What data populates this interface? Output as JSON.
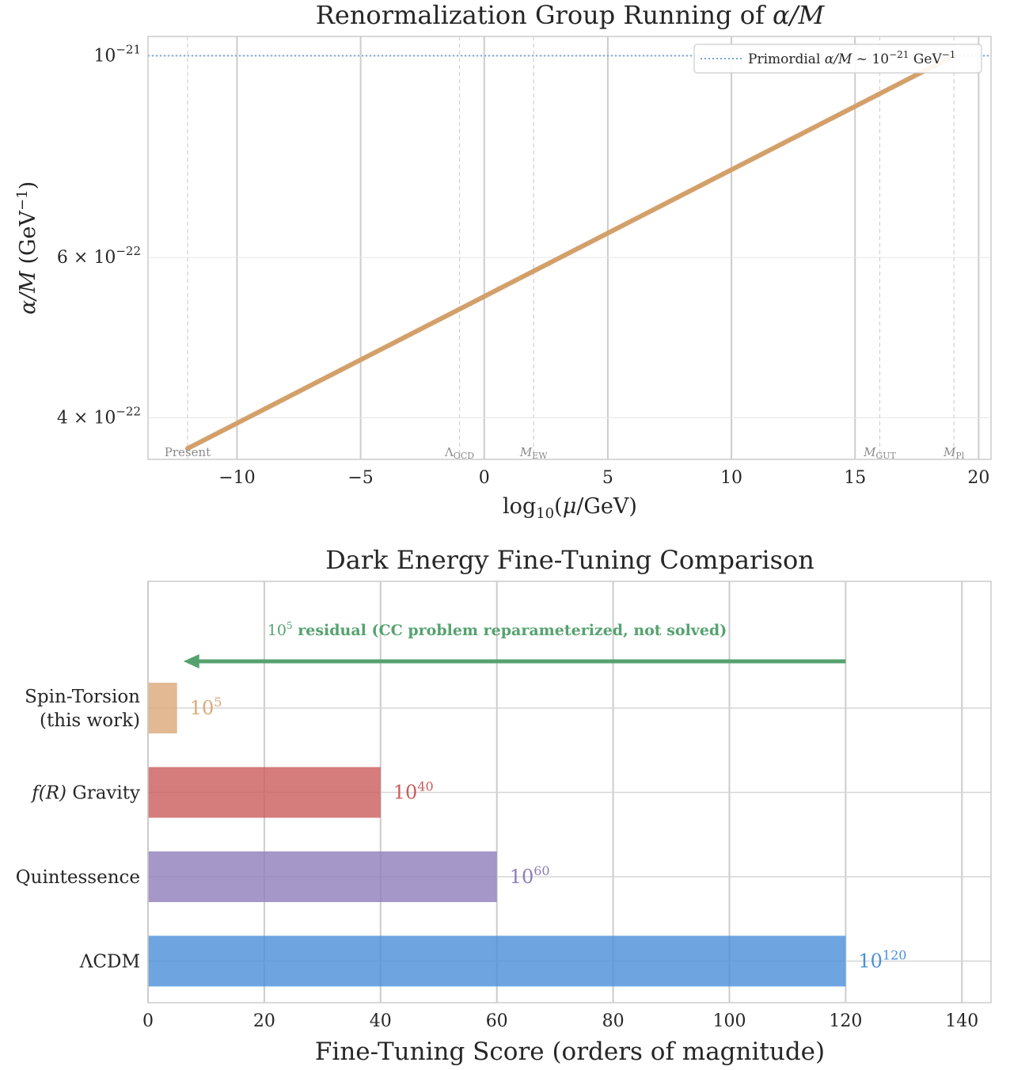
{
  "chart_data": [
    {
      "type": "line",
      "title": "Renormalization Group Running of α/M",
      "xlabel": "log10(μ/GeV)",
      "ylabel": "α/M (GeV⁻¹)",
      "y_scale": "log",
      "xlim": [
        -13.6,
        20.5
      ],
      "ylim": [
        3.6e-22,
        1.05e-21
      ],
      "x_ticks": [
        -10,
        -5,
        0,
        5,
        10,
        15,
        20
      ],
      "x_tick_labels": [
        "−10",
        "−5",
        "0",
        "5",
        "10",
        "15",
        "20"
      ],
      "y_ticks": [
        4e-22,
        6e-22,
        1e-21
      ],
      "y_tick_labels": [
        "4 × 10⁻²²",
        "6 × 10⁻²²",
        "10⁻²¹"
      ],
      "grid": true,
      "legend_placement": "top-right",
      "series": [
        {
          "name": "",
          "color": "#d4a06a",
          "x": [
            -12,
            19
          ],
          "y": [
            3.7e-22,
            1e-21
          ]
        }
      ],
      "reference_line": {
        "label": "Primordial α/M ~ 10⁻²¹ GeV⁻¹",
        "y": 1e-21,
        "color": "#7aa7d6",
        "style": "dotted"
      },
      "scale_markers": [
        {
          "label": "Present",
          "x": -12
        },
        {
          "label": "ΛQCD",
          "x": -1
        },
        {
          "label": "MEW",
          "x": 2
        },
        {
          "label": "MGUT",
          "x": 16
        },
        {
          "label": "MPl",
          "x": 19
        }
      ]
    },
    {
      "type": "bar",
      "orientation": "horizontal",
      "title": "Dark Energy Fine-Tuning Comparison",
      "xlabel": "Fine-Tuning Score (orders of magnitude)",
      "ylabel": "",
      "xlim": [
        0,
        145
      ],
      "x_ticks": [
        0,
        20,
        40,
        60,
        80,
        100,
        120,
        140
      ],
      "grid": true,
      "categories": [
        "Spin-Torsion\n(this work)",
        "f(R) Gravity",
        "Quintessence",
        "ΛCDM"
      ],
      "values": [
        5,
        40,
        60,
        120
      ],
      "bar_labels": [
        "10⁵",
        "10⁴⁰",
        "10⁶⁰",
        "10¹²⁰"
      ],
      "colors": [
        "#dba877",
        "#cb5b5b",
        "#8e7dba",
        "#4a8fd9"
      ],
      "annotation": {
        "text": "10⁵ residual (CC problem reparameterized, not solved)",
        "arrow_from": 120,
        "arrow_to": 5,
        "color": "#55a26f"
      }
    }
  ]
}
